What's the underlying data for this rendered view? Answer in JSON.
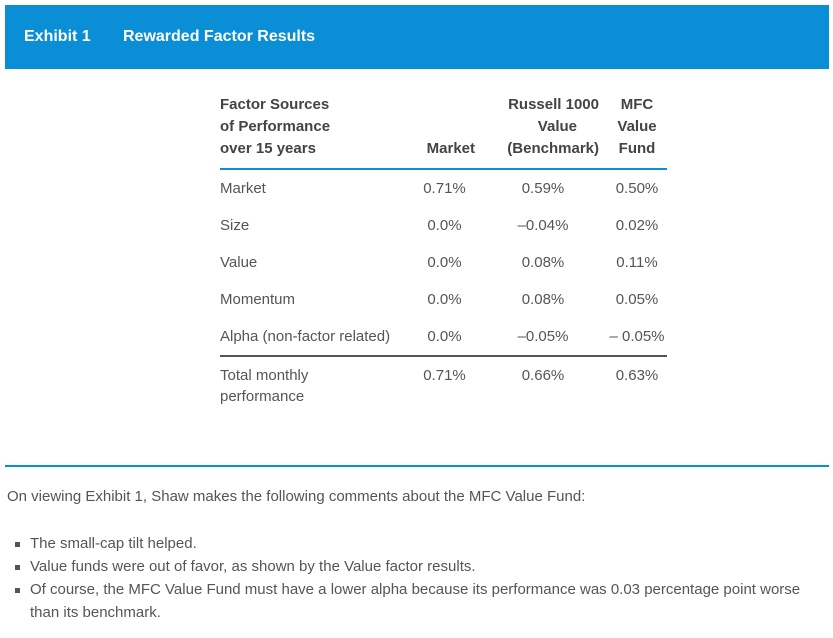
{
  "header": {
    "exhibit": "Exhibit 1",
    "title": "Rewarded Factor Results"
  },
  "table": {
    "columns": [
      [
        "Factor Sources",
        "of Performance",
        "over 15 years"
      ],
      [
        "Market"
      ],
      [
        "Russell 1000",
        "Value",
        "(Benchmark)"
      ],
      [
        "MFC",
        "Value",
        "Fund"
      ]
    ],
    "rows": [
      {
        "label": "Market",
        "values": [
          "0.71%",
          "0.59%",
          "0.50%"
        ]
      },
      {
        "label": "Size",
        "values": [
          "0.0%",
          "–0.04%",
          "0.02%"
        ]
      },
      {
        "label": "Value",
        "values": [
          "0.0%",
          "0.08%",
          "0.11%"
        ]
      },
      {
        "label": "Momentum",
        "values": [
          "0.0%",
          "0.08%",
          "0.05%"
        ]
      },
      {
        "label": "Alpha (non-factor related)",
        "values": [
          "0.0%",
          "–0.05%",
          "– 0.05%"
        ]
      }
    ],
    "total": {
      "label": "Total monthly performance",
      "values": [
        "0.71%",
        "0.66%",
        "0.63%"
      ]
    }
  },
  "intro": "On viewing Exhibit 1, Shaw makes the following comments about the MFC Value Fund:",
  "bullets": [
    "The small-cap tilt helped.",
    "Value funds were out of favor, as shown by the Value factor results.",
    "Of course, the MFC Value Fund must have a lower alpha because its performance was 0.03 percentage point worse than its benchmark."
  ]
}
